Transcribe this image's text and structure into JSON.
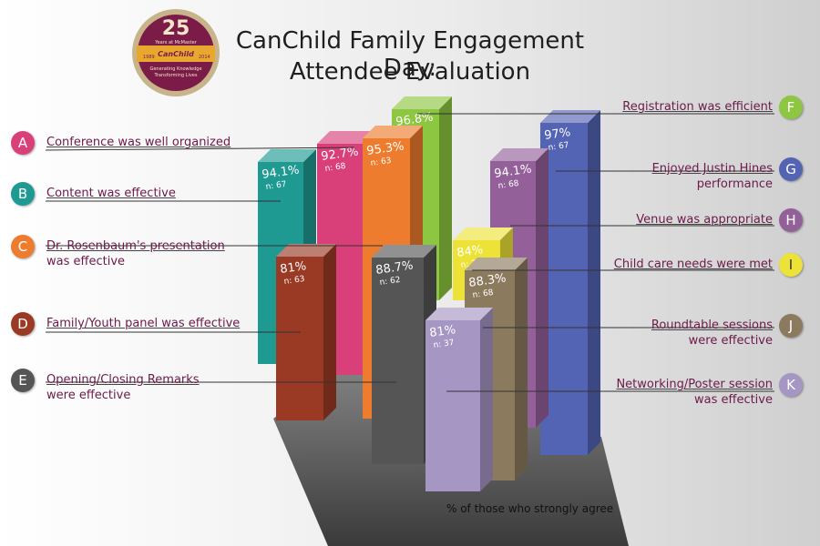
{
  "title": {
    "line1": "CanChild Family Engagement Day:",
    "line2": "Attendee Evaluation"
  },
  "logo": {
    "number": "25",
    "years": "Years at McMaster",
    "brand": "CanChild",
    "start_year": "1989",
    "end_year": "2014",
    "tagline1": "Generating Knowledge",
    "tagline2": "Transforming Lives"
  },
  "footnote": "% of those who strongly agree",
  "chart_data": {
    "type": "bar",
    "categories": [
      "A",
      "B",
      "C",
      "D",
      "E",
      "F",
      "G",
      "H",
      "I",
      "J",
      "K"
    ],
    "series": [
      {
        "values": [
          92.7,
          94.1,
          95.3,
          81,
          88.7,
          96.8,
          97,
          94.1,
          84,
          88.3,
          81
        ],
        "value_labels": [
          "92.7%",
          "94.1%",
          "95.3%",
          "81%",
          "88.7%",
          "96.8%",
          "97%",
          "94.1%",
          "84%",
          "88.3%",
          "81%"
        ],
        "n_labels": [
          "n: 68",
          "n: 67",
          "n: 63",
          "n: 63",
          "n: 62",
          "n: 62",
          "n: 67",
          "n: 68",
          "n: 25",
          "n: 68",
          "n: 37"
        ]
      }
    ],
    "statements": [
      {
        "letter": "A",
        "line1": "Conference was well organized",
        "line2": ""
      },
      {
        "letter": "B",
        "line1": "Content was effective",
        "line2": ""
      },
      {
        "letter": "C",
        "line1": "Dr. Rosenbaum's presentation",
        "line2": "was effective"
      },
      {
        "letter": "D",
        "line1": "Family/Youth panel was effective",
        "line2": ""
      },
      {
        "letter": "E",
        "line1": "Opening/Closing Remarks",
        "line2": "were effective"
      },
      {
        "letter": "F",
        "line1": "Registration was efficient",
        "line2": ""
      },
      {
        "letter": "G",
        "line1": "Enjoyed Justin Hines",
        "line2": "performance"
      },
      {
        "letter": "H",
        "line1": "Venue was appropriate",
        "line2": ""
      },
      {
        "letter": "I",
        "line1": "Child care needs were met",
        "line2": ""
      },
      {
        "letter": "J",
        "line1": "Roundtable sessions",
        "line2": "were effective"
      },
      {
        "letter": "K",
        "line1": "Networking/Poster session",
        "line2": "was effective"
      }
    ],
    "colors": [
      "#d9407a",
      "#1f9a92",
      "#ee7c2e",
      "#9a3a24",
      "#555555",
      "#8dc640",
      "#5464b4",
      "#94609a",
      "#ede238",
      "#8c7a5e",
      "#a596c4"
    ]
  }
}
